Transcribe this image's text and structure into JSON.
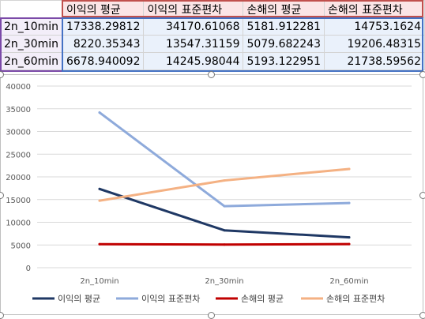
{
  "table": {
    "headers": [
      "",
      "이익의 평균",
      "이익의 표준편차",
      "손해의 평균",
      "손해의 표준편차"
    ],
    "rows": [
      {
        "label": "2n_10min",
        "values": [
          "17338.29812",
          "34170.61068",
          "5181.912281",
          "14753.1624"
        ]
      },
      {
        "label": "2n_30min",
        "values": [
          "8220.35343",
          "13547.31159",
          "5079.682243",
          "19206.48315"
        ]
      },
      {
        "label": "2n_60min",
        "values": [
          "6678.940092",
          "14245.98044",
          "5193.122951",
          "21738.59562"
        ]
      }
    ]
  },
  "chart_data": {
    "type": "line",
    "categories": [
      "2n_10min",
      "2n_30min",
      "2n_60min"
    ],
    "series": [
      {
        "name": "이익의 평균",
        "color": "#1f3864",
        "values": [
          17338.29812,
          8220.35343,
          6678.940092
        ]
      },
      {
        "name": "이익의 표준편차",
        "color": "#8eaadb",
        "values": [
          34170.61068,
          13547.31159,
          14245.98044
        ]
      },
      {
        "name": "손해의 평균",
        "color": "#c00000",
        "values": [
          5181.912281,
          5079.682243,
          5193.122951
        ]
      },
      {
        "name": "손해의 표준편차",
        "color": "#f4b183",
        "values": [
          14753.1624,
          19206.48315,
          21738.59562
        ]
      }
    ],
    "ylim": [
      0,
      40000
    ],
    "yticks": [
      "0",
      "5000",
      "10000",
      "15000",
      "20000",
      "25000",
      "30000",
      "35000",
      "40000"
    ],
    "grid": true,
    "legend": "bottom"
  }
}
